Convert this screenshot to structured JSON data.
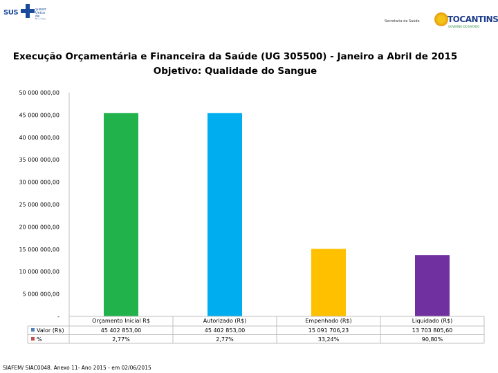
{
  "header": {
    "left_logo_text": "SUS",
    "left_logo_small": "Sistema Único de Saúde",
    "right_logo_secretaria": "Secretaria da Saúde",
    "right_logo_name": "TOCANTINS",
    "right_logo_sub": "GOVERNO DO ESTADO"
  },
  "title_line1": "Execução Orçamentária e Financeira da Saúde (UG 305500) - Janeiro a Abril de 2015",
  "title_line2": "Objetivo: Qualidade do Sangue",
  "source": "SIAFEM/ SIAC0048. Anexo 11- Ano 2015 - em 02/06/2015",
  "chart_data": {
    "type": "bar",
    "categories": [
      "Orçamento Inicial R$",
      "Autorizado (R$)",
      "Empenhado (R$)",
      "Liquidado (R$)"
    ],
    "values": [
      45402853.0,
      45402853.0,
      15091706.23,
      13703805.6
    ],
    "colors": [
      "#21b24b",
      "#00aeef",
      "#ffc000",
      "#7030a0"
    ],
    "ylim": [
      0,
      50000000
    ],
    "yticks": [
      0,
      5000000,
      10000000,
      15000000,
      20000000,
      25000000,
      30000000,
      35000000,
      40000000,
      45000000,
      50000000
    ],
    "ytick_labels": [
      "-",
      "5 000 000,00",
      "10 000 000,00",
      "15 000 000,00",
      "20 000 000,00",
      "25 000 000,00",
      "30 000 000,00",
      "35 000 000,00",
      "40 000 000,00",
      "45 000 000,00",
      "50 000 000,00"
    ],
    "grid": false,
    "legend_position": "bottom-left (data table)",
    "table": {
      "rows": [
        {
          "label": "Valor (R$)",
          "color": "#4f81bd",
          "cells": [
            "45 402 853,00",
            "45 402 853,00",
            "15 091 706,23",
            "13 703 805,60"
          ]
        },
        {
          "label": "%",
          "color": "#c0504d",
          "cells": [
            "2,77%",
            "2,77%",
            "33,24%",
            "90,80%"
          ]
        }
      ]
    }
  }
}
